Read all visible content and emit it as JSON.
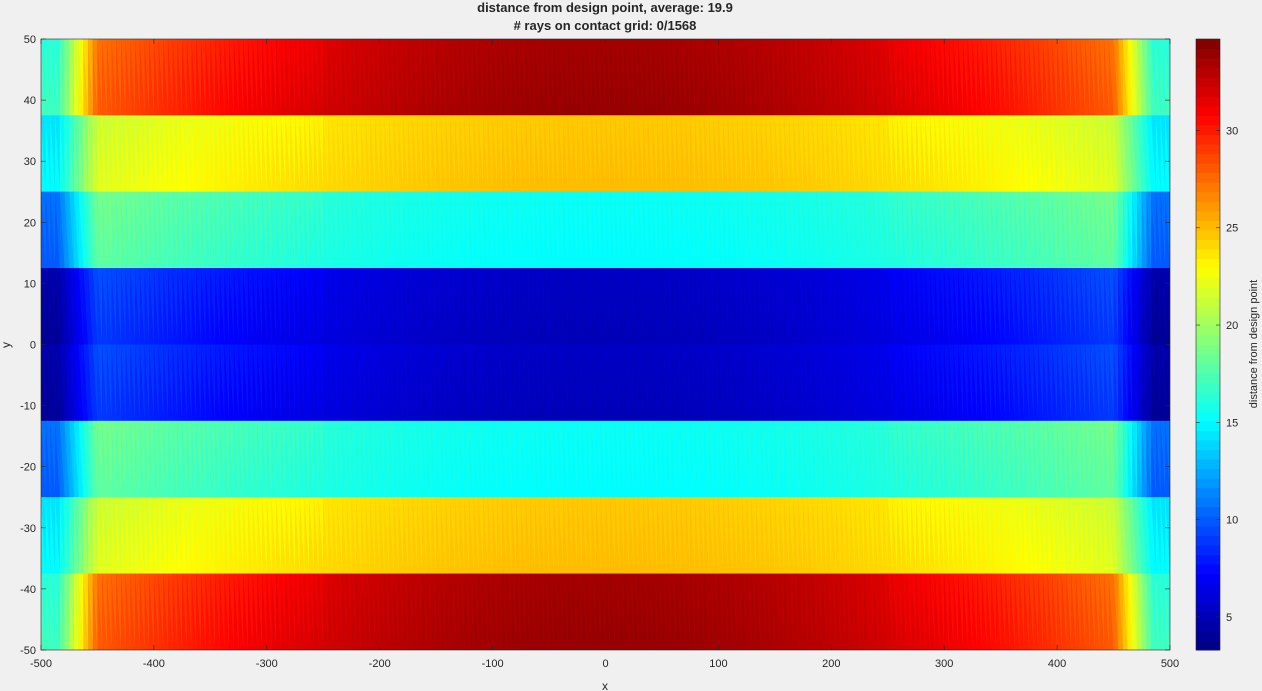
{
  "chart_data": {
    "type": "heatmap",
    "title": "distance from design point, average: 19.9",
    "subtitle": "# rays on contact grid: 0/1568",
    "xlabel": "x",
    "ylabel": "y",
    "xlim": [
      -500,
      500
    ],
    "ylim": [
      -50,
      50
    ],
    "x_ticks": [
      -500,
      -400,
      -300,
      -200,
      -100,
      0,
      100,
      200,
      300,
      400,
      500
    ],
    "y_ticks": [
      -50,
      -40,
      -30,
      -20,
      -10,
      0,
      10,
      20,
      30,
      40,
      50
    ],
    "colorbar": {
      "label": "distance from design point",
      "range": [
        3.3,
        34.7
      ],
      "ticks": [
        5,
        10,
        15,
        20,
        25,
        30
      ],
      "colormap": "jet"
    },
    "grid": false,
    "bands": [
      {
        "y_range": [
          37.5,
          50
        ],
        "edge_value": 17,
        "inner_value": 28,
        "center_value": 34
      },
      {
        "y_range": [
          25,
          37.5
        ],
        "edge_value": 15,
        "inner_value": 22,
        "center_value": 25
      },
      {
        "y_range": [
          12.5,
          25
        ],
        "edge_value": 10,
        "inner_value": 18,
        "center_value": 15
      },
      {
        "y_range": [
          0,
          12.5
        ],
        "edge_value": 4,
        "inner_value": 9,
        "center_value": 5
      },
      {
        "y_range": [
          -12.5,
          0
        ],
        "edge_value": 4,
        "inner_value": 9,
        "center_value": 5
      },
      {
        "y_range": [
          -25,
          -12.5
        ],
        "edge_value": 10,
        "inner_value": 18,
        "center_value": 15
      },
      {
        "y_range": [
          -37.5,
          -25
        ],
        "edge_value": 15,
        "inner_value": 22,
        "center_value": 25
      },
      {
        "y_range": [
          -50,
          -37.5
        ],
        "edge_value": 17,
        "inner_value": 28,
        "center_value": 34
      }
    ]
  }
}
